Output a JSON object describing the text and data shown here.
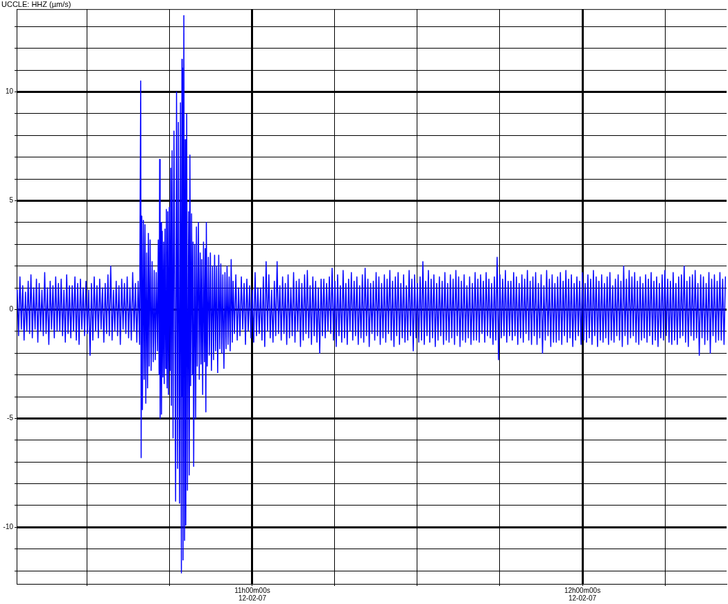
{
  "chart_data": {
    "type": "line",
    "title": "UCCLE: HHZ (µm/s)",
    "color": "#0000ff",
    "marker": "none",
    "line_style": "solid",
    "grid": true,
    "xlim": [
      "--02-12T10:17:09",
      "--02-12T12:26:13"
    ],
    "xticks": [
      {
        "value": "--02-12T10:30",
        "label": null
      },
      {
        "value": "--02-12T10:45",
        "label": null
      },
      {
        "value": "--02-12T11:00",
        "label": "11h00m00s\n12-02-07"
      },
      {
        "value": "--02-12T11:15",
        "label": null
      },
      {
        "value": "--02-12T11:30",
        "label": null
      },
      {
        "value": "--02-12T11:45",
        "label": null
      },
      {
        "value": "--02-12T12:00",
        "label": "12h00m00s\n12-02-07"
      },
      {
        "value": "--02-12T12:15",
        "label": null
      }
    ],
    "ylim": [
      -12.6,
      13.8
    ],
    "yticks": [
      {
        "value": -12,
        "label": null
      },
      {
        "value": -11,
        "label": null
      },
      -10,
      {
        "value": -9,
        "label": null
      },
      {
        "value": -8,
        "label": null
      },
      {
        "value": -7,
        "label": null
      },
      {
        "value": -6,
        "label": null
      },
      -5,
      {
        "value": -4,
        "label": null
      },
      {
        "value": -3,
        "label": null
      },
      {
        "value": -2,
        "label": null
      },
      {
        "value": -1,
        "label": null
      },
      0,
      {
        "value": 1,
        "label": null
      },
      {
        "value": 2,
        "label": null
      },
      {
        "value": 3,
        "label": null
      },
      {
        "value": 4,
        "label": null
      },
      5,
      {
        "value": 6,
        "label": null
      },
      {
        "value": 7,
        "label": null
      },
      {
        "value": 8,
        "label": null
      },
      {
        "value": 9,
        "label": null
      },
      10,
      {
        "value": 11,
        "label": null
      },
      {
        "value": 12,
        "label": null
      },
      {
        "value": 13,
        "label": null
      }
    ],
    "x": [
      "--02-12T10:17:15",
      "--02-12T10:17:30",
      "--02-12T10:17:45",
      "--02-12T10:18:00",
      "--02-12T10:18:15",
      "--02-12T10:18:30",
      "--02-12T10:18:45",
      "--02-12T10:19:00",
      "--02-12T10:19:15",
      "--02-12T10:19:30",
      "--02-12T10:19:45",
      "--02-12T10:20:00",
      "--02-12T10:20:15",
      "--02-12T10:20:30",
      "--02-12T10:20:45",
      "--02-12T10:21:00",
      "--02-12T10:21:15",
      "--02-12T10:21:30",
      "--02-12T10:21:45",
      "--02-12T10:22:00",
      "--02-12T10:22:15",
      "--02-12T10:22:30",
      "--02-12T10:22:45",
      "--02-12T10:23:00",
      "--02-12T10:23:15",
      "--02-12T10:23:30",
      "--02-12T10:23:45",
      "--02-12T10:24:00",
      "--02-12T10:24:15",
      "--02-12T10:24:30",
      "--02-12T10:24:45",
      "--02-12T10:25:00",
      "--02-12T10:25:15",
      "--02-12T10:25:30",
      "--02-12T10:25:45",
      "--02-12T10:26:00",
      "--02-12T10:26:15",
      "--02-12T10:26:30",
      "--02-12T10:26:45",
      "--02-12T10:27:00",
      "--02-12T10:27:15",
      "--02-12T10:27:30",
      "--02-12T10:27:45",
      "--02-12T10:28:00",
      "--02-12T10:28:15",
      "--02-12T10:28:30",
      "--02-12T10:28:45",
      "--02-12T10:29:00",
      "--02-12T10:29:15",
      "--02-12T10:29:30",
      "--02-12T10:29:45",
      "--02-12T10:30:00",
      "--02-12T10:30:15",
      "--02-12T10:30:30",
      "--02-12T10:30:45",
      "--02-12T10:31:00",
      "--02-12T10:31:15",
      "--02-12T10:31:30",
      "--02-12T10:31:45",
      "--02-12T10:32:00",
      "--02-12T10:32:15",
      "--02-12T10:32:30",
      "--02-12T10:32:45",
      "--02-12T10:33:00",
      "--02-12T10:33:15",
      "--02-12T10:33:30",
      "--02-12T10:33:45",
      "--02-12T10:34:00",
      "--02-12T10:34:15",
      "--02-12T10:34:30",
      "--02-12T10:34:45",
      "--02-12T10:35:00",
      "--02-12T10:35:15",
      "--02-12T10:35:30",
      "--02-12T10:35:45",
      "--02-12T10:36:00",
      "--02-12T10:36:15",
      "--02-12T10:36:30",
      "--02-12T10:36:45",
      "--02-12T10:37:00",
      "--02-12T10:37:15",
      "--02-12T10:37:30",
      "--02-12T10:37:45",
      "--02-12T10:38:00",
      "--02-12T10:38:15",
      "--02-12T10:38:30",
      "--02-12T10:38:45",
      "--02-12T10:39:00",
      "--02-12T10:39:15",
      "--02-12T10:39:30",
      "--02-12T10:39:42",
      "--02-12T10:39:47",
      "--02-12T10:39:54",
      "--02-12T10:40:01",
      "--02-12T10:40:11",
      "--02-12T10:40:20",
      "--02-12T10:40:29",
      "--02-12T10:40:38",
      "--02-12T10:40:47",
      "--02-12T10:40:57",
      "--02-12T10:41:06",
      "--02-12T10:41:15",
      "--02-12T10:41:25",
      "--02-12T10:41:36",
      "--02-12T10:41:47",
      "--02-12T10:41:59",
      "--02-12T10:42:10",
      "--02-12T10:42:21",
      "--02-12T10:42:32",
      "--02-12T10:42:44",
      "--02-12T10:42:54",
      "--02-12T10:43:03",
      "--02-12T10:43:09",
      "--02-12T10:43:14",
      "--02-12T10:43:22",
      "--02-12T10:43:29",
      "--02-12T10:43:37",
      "--02-12T10:43:44",
      "--02-12T10:43:52",
      "--02-12T10:43:59",
      "--02-12T10:44:07",
      "--02-12T10:44:15",
      "--02-12T10:44:22",
      "--02-12T10:44:30",
      "--02-12T10:44:37",
      "--02-12T10:44:45",
      "--02-12T10:44:54",
      "--02-12T10:45:02",
      "--02-12T10:45:10",
      "--02-12T10:45:17",
      "--02-12T10:45:25",
      "--02-12T10:45:35",
      "--02-12T10:45:45",
      "--02-12T10:46:03",
      "--02-12T10:46:13",
      "--02-12T10:46:25",
      "--02-12T10:46:33",
      "--02-12T10:46:46",
      "--02-12T10:46:56",
      "--02-12T10:47:06",
      "--02-12T10:47:12",
      "--02-12T10:47:15",
      "--02-12T10:47:19",
      "--02-12T10:47:24",
      "--02-12T10:47:33",
      "--02-12T10:47:41",
      "--02-12T10:47:48",
      "--02-12T10:47:54",
      "--02-12T10:48:04",
      "--02-12T10:48:12",
      "--02-12T10:48:24",
      "--02-12T10:48:32",
      "--02-12T10:48:39",
      "--02-12T10:48:47",
      "--02-12T10:48:57",
      "--02-12T10:49:06",
      "--02-12T10:49:13",
      "--02-12T10:49:20",
      "--02-12T10:49:31",
      "--02-12T10:49:42",
      "--02-12T10:49:50",
      "--02-12T10:49:59",
      "--02-12T10:50:12",
      "--02-12T10:50:21",
      "--02-12T10:50:31",
      "--02-12T10:50:40",
      "--02-12T10:50:48",
      "--02-12T10:50:58",
      "--02-12T10:51:07",
      "--02-12T10:51:17",
      "--02-12T10:51:26",
      "--02-12T10:51:33",
      "--02-12T10:51:38",
      "--02-12T10:51:48",
      "--02-12T10:52:00",
      "--02-12T10:52:11",
      "--02-12T10:52:22",
      "--02-12T10:52:34",
      "--02-12T10:52:45",
      "--02-12T10:52:57",
      "--02-12T10:53:08",
      "--02-12T10:53:19",
      "--02-12T10:53:30",
      "--02-12T10:53:42",
      "--02-12T10:53:53",
      "--02-12T10:54:05",
      "--02-12T10:54:16",
      "--02-12T10:54:27",
      "--02-12T10:54:38",
      "--02-12T10:54:50",
      "--02-12T10:55:01",
      "--02-12T10:55:13",
      "--02-12T10:55:24",
      "--02-12T10:55:35",
      "--02-12T10:55:47",
      "--02-12T10:55:58",
      "--02-12T10:56:09",
      "--02-12T10:56:21",
      "--02-12T10:56:30",
      "--02-12T10:56:45",
      "--02-12T10:57:00",
      "--02-12T10:57:15",
      "--02-12T10:57:30",
      "--02-12T10:57:45",
      "--02-12T10:58:00",
      "--02-12T10:58:15",
      "--02-12T10:58:30",
      "--02-12T10:58:45",
      "--02-12T10:59:00",
      "--02-12T10:59:15",
      "--02-12T10:59:30",
      "--02-12T10:59:45",
      "--02-12T11:00:00",
      "--02-12T11:00:15",
      "--02-12T11:00:30",
      "--02-12T11:00:45",
      "--02-12T11:01:00",
      "--02-12T11:01:15",
      "--02-12T11:01:30",
      "--02-12T11:01:45",
      "--02-12T11:02:00",
      "--02-12T11:02:15",
      "--02-12T11:02:30",
      "--02-12T11:02:45",
      "--02-12T11:03:00",
      "--02-12T11:03:15",
      "--02-12T11:03:30",
      "--02-12T11:03:45",
      "--02-12T11:04:00",
      "--02-12T11:04:15",
      "--02-12T11:04:30",
      "--02-12T11:04:45",
      "--02-12T11:05:00",
      "--02-12T11:05:15",
      "--02-12T11:05:30",
      "--02-12T11:05:45",
      "--02-12T11:06:00",
      "--02-12T11:06:15",
      "--02-12T11:06:30",
      "--02-12T11:06:45",
      "--02-12T11:07:00",
      "--02-12T11:07:15",
      "--02-12T11:07:30",
      "--02-12T11:07:45",
      "--02-12T11:08:00",
      "--02-12T11:08:15",
      "--02-12T11:08:30",
      "--02-12T11:08:45",
      "--02-12T11:09:00",
      "--02-12T11:09:15",
      "--02-12T11:09:30",
      "--02-12T11:09:45",
      "--02-12T11:10:00",
      "--02-12T11:10:15",
      "--02-12T11:10:30",
      "--02-12T11:10:45",
      "--02-12T11:11:00",
      "--02-12T11:11:15",
      "--02-12T11:11:30",
      "--02-12T11:11:45",
      "--02-12T11:12:00",
      "--02-12T11:12:15",
      "--02-12T11:12:30",
      "--02-12T11:12:45",
      "--02-12T11:13:00",
      "--02-12T11:13:15",
      "--02-12T11:13:30",
      "--02-12T11:13:45",
      "--02-12T11:14:00",
      "--02-12T11:14:15",
      "--02-12T11:14:30",
      "--02-12T11:14:45",
      "--02-12T11:15:00",
      "--02-12T11:15:15",
      "--02-12T11:15:30",
      "--02-12T11:15:45",
      "--02-12T11:16:00",
      "--02-12T11:16:15",
      "--02-12T11:16:30",
      "--02-12T11:16:45",
      "--02-12T11:17:00",
      "--02-12T11:17:15",
      "--02-12T11:17:30",
      "--02-12T11:17:45",
      "--02-12T11:18:00",
      "--02-12T11:18:15",
      "--02-12T11:18:30",
      "--02-12T11:18:45",
      "--02-12T11:19:00",
      "--02-12T11:19:15",
      "--02-12T11:19:30",
      "--02-12T11:19:45",
      "--02-12T11:20:00",
      "--02-12T11:20:15",
      "--02-12T11:20:30",
      "--02-12T11:20:45",
      "--02-12T11:21:00",
      "--02-12T11:21:15",
      "--02-12T11:21:30",
      "--02-12T11:21:45",
      "--02-12T11:22:00",
      "--02-12T11:22:15",
      "--02-12T11:22:30",
      "--02-12T11:22:45",
      "--02-12T11:23:00",
      "--02-12T11:23:15",
      "--02-12T11:23:30",
      "--02-12T11:23:45",
      "--02-12T11:24:00",
      "--02-12T11:24:15",
      "--02-12T11:24:30",
      "--02-12T11:24:45",
      "--02-12T11:25:00",
      "--02-12T11:25:15",
      "--02-12T11:25:30",
      "--02-12T11:25:45",
      "--02-12T11:26:00",
      "--02-12T11:26:15",
      "--02-12T11:26:30",
      "--02-12T11:26:45",
      "--02-12T11:27:00",
      "--02-12T11:27:15",
      "--02-12T11:27:30",
      "--02-12T11:27:45",
      "--02-12T11:28:00",
      "--02-12T11:28:15",
      "--02-12T11:28:30",
      "--02-12T11:28:45",
      "--02-12T11:29:00",
      "--02-12T11:29:15",
      "--02-12T11:29:30",
      "--02-12T11:29:45",
      "--02-12T11:30:00",
      "--02-12T11:30:15",
      "--02-12T11:30:30",
      "--02-12T11:30:45",
      "--02-12T11:31:00",
      "--02-12T11:31:15",
      "--02-12T11:31:30",
      "--02-12T11:31:45",
      "--02-12T11:32:00",
      "--02-12T11:32:15",
      "--02-12T11:32:30",
      "--02-12T11:32:45",
      "--02-12T11:33:00",
      "--02-12T11:33:15",
      "--02-12T11:33:30",
      "--02-12T11:33:45",
      "--02-12T11:34:00",
      "--02-12T11:34:15",
      "--02-12T11:34:30",
      "--02-12T11:34:45",
      "--02-12T11:35:00",
      "--02-12T11:35:15",
      "--02-12T11:35:30",
      "--02-12T11:35:45",
      "--02-12T11:36:00",
      "--02-12T11:36:15",
      "--02-12T11:36:30",
      "--02-12T11:36:45",
      "--02-12T11:37:00",
      "--02-12T11:37:15",
      "--02-12T11:37:30",
      "--02-12T11:37:45",
      "--02-12T11:38:00",
      "--02-12T11:38:15",
      "--02-12T11:38:30",
      "--02-12T11:38:45",
      "--02-12T11:39:00",
      "--02-12T11:39:15",
      "--02-12T11:39:30",
      "--02-12T11:39:45",
      "--02-12T11:40:00",
      "--02-12T11:40:15",
      "--02-12T11:40:30",
      "--02-12T11:40:45",
      "--02-12T11:41:00",
      "--02-12T11:41:15",
      "--02-12T11:41:30",
      "--02-12T11:41:45",
      "--02-12T11:42:00",
      "--02-12T11:42:15",
      "--02-12T11:42:30",
      "--02-12T11:42:45",
      "--02-12T11:43:00",
      "--02-12T11:43:15",
      "--02-12T11:43:30",
      "--02-12T11:43:45",
      "--02-12T11:44:00",
      "--02-12T11:44:15",
      "--02-12T11:44:30",
      "--02-12T11:44:45",
      "--02-12T11:45:00",
      "--02-12T11:45:15",
      "--02-12T11:45:30",
      "--02-12T11:45:45",
      "--02-12T11:46:00",
      "--02-12T11:46:15",
      "--02-12T11:46:30",
      "--02-12T11:46:45",
      "--02-12T11:47:00",
      "--02-12T11:47:15",
      "--02-12T11:47:30",
      "--02-12T11:47:45",
      "--02-12T11:48:00",
      "--02-12T11:48:15",
      "--02-12T11:48:30",
      "--02-12T11:48:45",
      "--02-12T11:49:00",
      "--02-12T11:49:15",
      "--02-12T11:49:30",
      "--02-12T11:49:45",
      "--02-12T11:50:00",
      "--02-12T11:50:15",
      "--02-12T11:50:30",
      "--02-12T11:50:45",
      "--02-12T11:51:00",
      "--02-12T11:51:15",
      "--02-12T11:51:30",
      "--02-12T11:51:45",
      "--02-12T11:52:00",
      "--02-12T11:52:15",
      "--02-12T11:52:30",
      "--02-12T11:52:45",
      "--02-12T11:53:00",
      "--02-12T11:53:15",
      "--02-12T11:53:30",
      "--02-12T11:53:45",
      "--02-12T11:54:00",
      "--02-12T11:54:15",
      "--02-12T11:54:30",
      "--02-12T11:54:45",
      "--02-12T11:55:00",
      "--02-12T11:55:15",
      "--02-12T11:55:30",
      "--02-12T11:55:45",
      "--02-12T11:56:00",
      "--02-12T11:56:15",
      "--02-12T11:56:30",
      "--02-12T11:56:45",
      "--02-12T11:57:00",
      "--02-12T11:57:15",
      "--02-12T11:57:30",
      "--02-12T11:57:45",
      "--02-12T11:58:00",
      "--02-12T11:58:15",
      "--02-12T11:58:30",
      "--02-12T11:58:45",
      "--02-12T11:59:00",
      "--02-12T11:59:15",
      "--02-12T11:59:30",
      "--02-12T11:59:45",
      "--02-12T12:00:00",
      "--02-12T12:00:15",
      "--02-12T12:00:30",
      "--02-12T12:00:45",
      "--02-12T12:01:00",
      "--02-12T12:01:15",
      "--02-12T12:01:30",
      "--02-12T12:01:45",
      "--02-12T12:02:00",
      "--02-12T12:02:15",
      "--02-12T12:02:30",
      "--02-12T12:02:45",
      "--02-12T12:03:00",
      "--02-12T12:03:15",
      "--02-12T12:03:30",
      "--02-12T12:03:45",
      "--02-12T12:04:00",
      "--02-12T12:04:15",
      "--02-12T12:04:30",
      "--02-12T12:04:45",
      "--02-12T12:05:00",
      "--02-12T12:05:15",
      "--02-12T12:05:30",
      "--02-12T12:05:45",
      "--02-12T12:06:00",
      "--02-12T12:06:15",
      "--02-12T12:06:30",
      "--02-12T12:06:45",
      "--02-12T12:07:00",
      "--02-12T12:07:15",
      "--02-12T12:07:30",
      "--02-12T12:07:45",
      "--02-12T12:08:00",
      "--02-12T12:08:15",
      "--02-12T12:08:30",
      "--02-12T12:08:45",
      "--02-12T12:09:00",
      "--02-12T12:09:15",
      "--02-12T12:09:30",
      "--02-12T12:09:45",
      "--02-12T12:10:00",
      "--02-12T12:10:15",
      "--02-12T12:10:30",
      "--02-12T12:10:45",
      "--02-12T12:11:00",
      "--02-12T12:11:15",
      "--02-12T12:11:30",
      "--02-12T12:11:45",
      "--02-12T12:12:00",
      "--02-12T12:12:15",
      "--02-12T12:12:30",
      "--02-12T12:12:45",
      "--02-12T12:13:00",
      "--02-12T12:13:15",
      "--02-12T12:13:30",
      "--02-12T12:13:45",
      "--02-12T12:14:00",
      "--02-12T12:14:15",
      "--02-12T12:14:30",
      "--02-12T12:14:45",
      "--02-12T12:15:00",
      "--02-12T12:15:15",
      "--02-12T12:15:30",
      "--02-12T12:15:45",
      "--02-12T12:16:00",
      "--02-12T12:16:15",
      "--02-12T12:16:30",
      "--02-12T12:16:45",
      "--02-12T12:17:00",
      "--02-12T12:17:15",
      "--02-12T12:17:30",
      "--02-12T12:17:45",
      "--02-12T12:18:00",
      "--02-12T12:18:15",
      "--02-12T12:18:30",
      "--02-12T12:18:45",
      "--02-12T12:19:00",
      "--02-12T12:19:15",
      "--02-12T12:19:30",
      "--02-12T12:19:45",
      "--02-12T12:20:00",
      "--02-12T12:20:15",
      "--02-12T12:20:30",
      "--02-12T12:20:45",
      "--02-12T12:21:00",
      "--02-12T12:21:15",
      "--02-12T12:21:30",
      "--02-12T12:21:45",
      "--02-12T12:22:00",
      "--02-12T12:22:15",
      "--02-12T12:22:30",
      "--02-12T12:22:45",
      "--02-12T12:23:00",
      "--02-12T12:23:15",
      "--02-12T12:23:30",
      "--02-12T12:23:45",
      "--02-12T12:24:00",
      "--02-12T12:24:15",
      "--02-12T12:24:30",
      "--02-12T12:24:45",
      "--02-12T12:25:00",
      "--02-12T12:25:15",
      "--02-12T12:25:30",
      "--02-12T12:25:45",
      "--02-12T12:26:00"
    ],
    "values": [
      0.9,
      -1.2,
      1.5,
      -0.9,
      1.1,
      -1.4,
      0.8,
      -1.0,
      1.3,
      -1.1,
      1.6,
      -1.3,
      1.0,
      -0.9,
      1.4,
      -1.5,
      1.2,
      -1.0,
      0.9,
      -1.2,
      1.7,
      -1.1,
      1.0,
      -1.6,
      1.3,
      -0.9,
      1.1,
      -1.3,
      1.5,
      -1.0,
      1.2,
      -1.0,
      1.4,
      -1.2,
      0.9,
      -1.5,
      1.6,
      -1.1,
      1.1,
      -1.3,
      1.1,
      -1.0,
      1.5,
      -1.4,
      1.2,
      -1.6,
      1.4,
      -0.9,
      1.0,
      -1.2,
      1.3,
      -1.1,
      0.9,
      -2.1,
      1.2,
      -1.4,
      1.5,
      -1.0,
      1.1,
      -1.3,
      1.4,
      -0.9,
      1.0,
      -1.5,
      1.2,
      -1.1,
      1.6,
      -1.2,
      2.0,
      -1.4,
      0.9,
      -1.0,
      1.3,
      -1.2,
      1.1,
      -1.6,
      1.4,
      -0.9,
      1.2,
      -1.1,
      1.5,
      -1.3,
      1.0,
      -1.4,
      1.7,
      -1.0,
      1.2,
      -1.5,
      1.3,
      -1.6,
      10.5,
      -6.8,
      4.3,
      -4.6,
      4.1,
      -3.2,
      3.9,
      -4.3,
      2.6,
      -3.6,
      3.5,
      -2.6,
      3.2,
      -2.8,
      2.2,
      -2.4,
      1.8,
      -2.3,
      1.7,
      -1.9,
      3.2,
      -3.0,
      6.9,
      -5.0,
      4.0,
      -4.8,
      3.6,
      -3.1,
      3.1,
      -3.4,
      3.7,
      -2.7,
      4.6,
      -3.6,
      4.5,
      -3.9,
      4.7,
      -2.8,
      6.5,
      -4.4,
      7.3,
      -5.9,
      8.2,
      -8.8,
      10.0,
      -7.3,
      8.6,
      -8.9,
      9.5,
      -12.1,
      11.5,
      -4.0,
      11.1,
      -11.5,
      13.5,
      -10.6,
      7.8,
      -9.9,
      9.0,
      -8.3,
      4.5,
      -7.6,
      7.1,
      -3.5,
      4.4,
      -3.0,
      3.1,
      -7.2,
      3.0,
      -5.0,
      3.8,
      -2.6,
      4.0,
      -3.2,
      2.6,
      -2.5,
      2.3,
      -3.9,
      3.1,
      -2.4,
      2.8,
      -4.7,
      4.0,
      -2.6,
      2.4,
      -2.1,
      2.6,
      -2.8,
      2.0,
      -2.3,
      2.5,
      -1.9,
      2.0,
      -2.9,
      2.5,
      -1.8,
      2.1,
      -2.0,
      1.6,
      -2.7,
      1.7,
      -1.8,
      2.0,
      -1.6,
      1.5,
      -1.9,
      2.3,
      -1.5,
      1.3,
      -1.1,
      1.6,
      -1.4,
      1.0,
      -1.2,
      1.5,
      -0.9,
      1.2,
      -1.6,
      1.4,
      -1.0,
      1.1,
      -1.3,
      0.9,
      -1.5,
      1.7,
      -1.2,
      1.0,
      -1.1,
      1.0,
      -1.4,
      1.5,
      -1.7,
      2.2,
      -1.0,
      1.6,
      -1.3,
      0.9,
      -1.5,
      1.3,
      -1.2,
      2.2,
      -1.1,
      1.1,
      -1.4,
      1.5,
      -1.1,
      1.2,
      -1.6,
      1.6,
      -1.3,
      1.0,
      -1.2,
      1.7,
      -1.5,
      1.3,
      -1.0,
      1.4,
      -1.7,
      1.2,
      -1.4,
      1.6,
      -1.1,
      1.8,
      -1.3,
      1.1,
      -1.6,
      1.5,
      -1.2,
      1.3,
      -1.5,
      1.0,
      -2.0,
      1.4,
      -1.2,
      1.4,
      -1.3,
      1.2,
      -1.0,
      1.5,
      -1.1,
      1.9,
      -1.4,
      1.3,
      -1.7,
      1.6,
      -1.2,
      1.1,
      -1.5,
      1.8,
      -1.3,
      1.2,
      -1.6,
      1.4,
      -1.0,
      1.7,
      -1.4,
      1.3,
      -1.2,
      1.5,
      -1.6,
      1.1,
      -1.3,
      1.6,
      -1.5,
      1.9,
      -1.2,
      1.4,
      -1.7,
      1.2,
      -1.1,
      1.3,
      -1.4,
      1.7,
      -1.2,
      1.5,
      -1.6,
      1.2,
      -1.3,
      1.6,
      -1.5,
      1.4,
      -1.1,
      1.8,
      -1.4,
      1.3,
      -1.7,
      1.5,
      -1.2,
      1.7,
      -1.6,
      1.2,
      -1.3,
      1.6,
      -1.5,
      1.1,
      -1.4,
      1.8,
      -1.2,
      1.4,
      -1.9,
      1.6,
      -1.3,
      1.2,
      -1.5,
      1.5,
      -1.4,
      2.2,
      -1.6,
      1.3,
      -1.2,
      1.8,
      -1.5,
      1.4,
      -1.3,
      1.6,
      -1.7,
      1.2,
      -1.4,
      1.5,
      -1.2,
      1.3,
      -1.6,
      1.7,
      -1.4,
      1.2,
      -1.5,
      1.6,
      -1.3,
      1.4,
      -1.6,
      1.8,
      -1.2,
      1.5,
      -1.7,
      1.3,
      -1.4,
      1.6,
      -1.5,
      1.1,
      -1.3,
      1.5,
      -1.6,
      1.2,
      -1.4,
      1.7,
      -1.4,
      1.4,
      -1.5,
      1.6,
      -1.1,
      1.3,
      -1.5,
      1.7,
      -1.2,
      1.4,
      -1.3,
      1.2,
      -1.6,
      1.5,
      -1.4,
      2.4,
      -2.3,
      1.6,
      -1.3,
      1.4,
      -1.2,
      1.8,
      -1.5,
      1.3,
      -1.2,
      1.3,
      -1.4,
      1.7,
      -1.2,
      1.5,
      -1.6,
      1.2,
      -1.3,
      1.6,
      -1.5,
      1.4,
      -1.1,
      1.8,
      -1.4,
      1.3,
      -1.6,
      1.5,
      -1.2,
      1.7,
      -1.6,
      1.2,
      -1.3,
      1.6,
      -2.0,
      1.1,
      -1.4,
      1.8,
      -1.2,
      1.4,
      -1.7,
      1.6,
      -1.5,
      1.2,
      -1.5,
      1.5,
      -1.4,
      1.7,
      -1.6,
      1.3,
      -1.2,
      1.8,
      -1.5,
      1.4,
      -1.3,
      1.6,
      -1.7,
      1.2,
      -1.4,
      1.5,
      -1.2,
      1.3,
      -1.6,
      1.7,
      -1.4,
      1.2,
      -1.5,
      1.6,
      -1.3,
      1.4,
      -1.6,
      1.8,
      -1.2,
      1.5,
      -1.7,
      1.3,
      -1.4,
      1.6,
      -1.5,
      1.2,
      -1.3,
      1.5,
      -1.6,
      1.7,
      -1.4,
      1.1,
      -1.5,
      1.4,
      -1.2,
      1.6,
      -1.4,
      1.3,
      -1.7,
      2.0,
      -1.2,
      1.4,
      -1.6,
      1.8,
      -1.3,
      1.5,
      -1.2,
      1.7,
      -1.5,
      1.3,
      -1.6,
      1.5,
      -1.4,
      1.2,
      -1.3,
      1.6,
      -1.5,
      1.4,
      -1.2,
      1.7,
      -1.6,
      1.3,
      -1.4,
      1.5,
      -1.7,
      1.2,
      -1.3,
      1.6,
      -1.4,
      1.8,
      -1.2,
      1.4,
      -1.5,
      1.3,
      -1.6,
      1.7,
      -1.4,
      1.2,
      -1.6,
      1.5,
      -1.3,
      1.6,
      -1.2,
      2.0,
      -1.5,
      1.3,
      -1.7,
      1.5,
      -1.2,
      1.6,
      -1.4,
      1.8,
      -1.3,
      1.2,
      -2.1,
      1.6,
      -1.3,
      1.5,
      -1.6,
      1.2,
      -1.4,
      1.7,
      -2.0,
      1.4,
      -1.2,
      1.6,
      -1.5,
      1.3,
      -1.4,
      1.7,
      -1.4,
      1.4,
      -1.6,
      1.5
    ]
  }
}
